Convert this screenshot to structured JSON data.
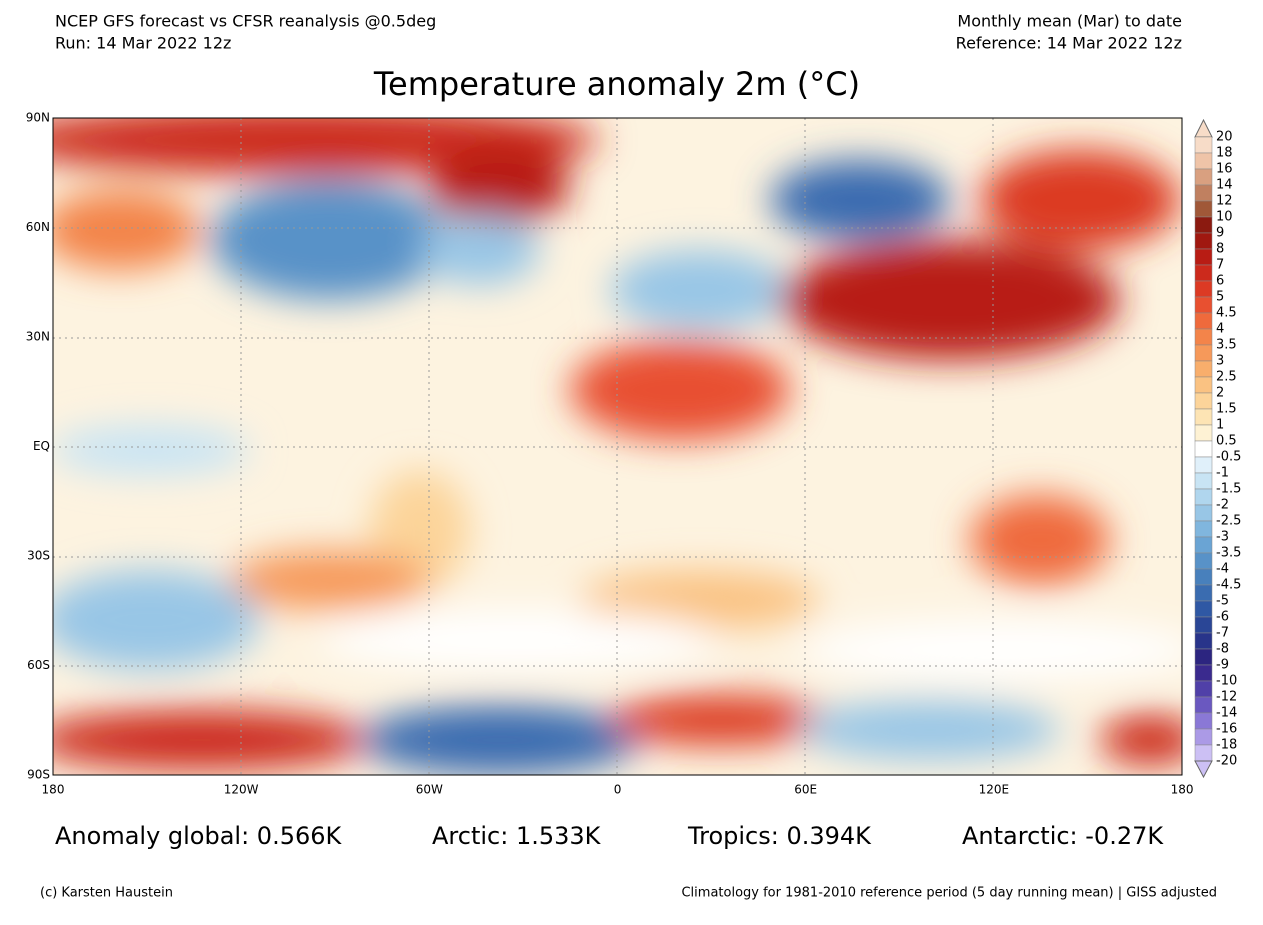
{
  "header": {
    "left_line1": "NCEP GFS forecast vs CFSR reanalysis @0.5deg",
    "left_line2": "Run: 14 Mar 2022 12z",
    "right_line1": "Monthly mean (Mar) to date",
    "right_line2": "Reference: 14 Mar 2022 12z",
    "title": "Temperature anomaly 2m (°C)"
  },
  "axes": {
    "lat_labels": [
      "90N",
      "60N",
      "30N",
      "EQ",
      "30S",
      "60S",
      "90S"
    ],
    "lon_labels": [
      "180",
      "120W",
      "60W",
      "0",
      "60E",
      "120E",
      "180"
    ]
  },
  "colorbar": {
    "labels": [
      "20",
      "18",
      "16",
      "14",
      "12",
      "10",
      "9",
      "8",
      "7",
      "6",
      "5",
      "4.5",
      "4",
      "3.5",
      "3",
      "2.5",
      "2",
      "1.5",
      "1",
      "0.5",
      "-0.5",
      "-1",
      "-1.5",
      "-2",
      "-2.5",
      "-3",
      "-3.5",
      "-4",
      "-4.5",
      "-5",
      "-6",
      "-7",
      "-8",
      "-9",
      "-10",
      "-12",
      "-14",
      "-16",
      "-18",
      "-20"
    ],
    "colors": [
      "#f7dcc8",
      "#efc4a8",
      "#d9a080",
      "#c08060",
      "#a05838",
      "#8b1a10",
      "#a01810",
      "#b81c14",
      "#cc2a1c",
      "#dc3a24",
      "#e85030",
      "#ef6a3c",
      "#f3844a",
      "#f6995a",
      "#f8ae6c",
      "#fac282",
      "#fcd49a",
      "#fde4b4",
      "#fef2d4",
      "#ffffff",
      "#e0f0fa",
      "#c8e4f4",
      "#b0d6ee",
      "#98c6e6",
      "#80b6de",
      "#6aa4d4",
      "#5892c8",
      "#4880bc",
      "#3a6cb0",
      "#2f58a4",
      "#2a4696",
      "#28348a",
      "#2c2580",
      "#3a2a8e",
      "#5040a8",
      "#6a58c0",
      "#8a78d6",
      "#ab9ae6",
      "#ccc0f4"
    ]
  },
  "stats": [
    "Anomaly global: 0.566K",
    "Arctic: 1.533K",
    "Tropics: 0.394K",
    "Antarctic: -0.27K"
  ],
  "footer": {
    "left": "(c) Karsten Haustein",
    "right": "Climatology for 1981-2010 reference period (5 day running mean) | GISS adjusted"
  }
}
